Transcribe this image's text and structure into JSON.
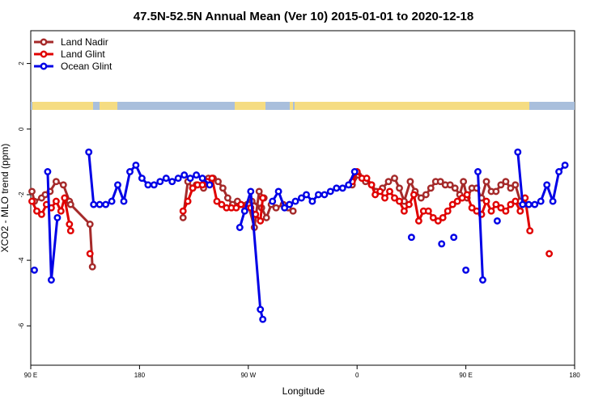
{
  "chart_data": {
    "type": "line",
    "title": "47.5N-52.5N Annual Mean (Ver 10)   2015-01-01 to 2020-12-18",
    "xlabel": "Longitude",
    "ylabel": "XCO2 - MLO trend (ppm)",
    "x_ticks": [
      {
        "value": 90,
        "label": "90 E"
      },
      {
        "value": 180,
        "label": "180"
      },
      {
        "value": 270,
        "label": "90 W"
      },
      {
        "value": 360,
        "label": "0"
      },
      {
        "value": 450,
        "label": "90 E"
      },
      {
        "value": 540,
        "label": "180"
      }
    ],
    "y_ticks": [
      {
        "value": -6,
        "label": "-6"
      },
      {
        "value": -4,
        "label": "-4"
      },
      {
        "value": -2,
        "label": "-2"
      },
      {
        "value": 0,
        "label": "0"
      },
      {
        "value": 2,
        "label": "2"
      }
    ],
    "xlim": [
      90,
      540
    ],
    "ylim": [
      -7.2,
      3.0
    ],
    "grid": false,
    "legend_position": "top-left",
    "land_strip_colors": {
      "land": "#f5dc82",
      "ocean": "#a9bfdc"
    },
    "series": [
      {
        "name": "Land Nadir",
        "color": "#a52a2a",
        "segments": [
          [
            [
              91,
              -1.9
            ],
            [
              93,
              -2.2
            ],
            [
              99,
              -2.1
            ],
            [
              102,
              -2.0
            ],
            [
              106,
              -1.9
            ],
            [
              111,
              -1.6
            ],
            [
              117,
              -1.7
            ],
            [
              122,
              -2.2
            ]
          ],
          [
            [
              123,
              -2.3
            ],
            [
              139,
              -2.9
            ],
            [
              141,
              -4.2
            ]
          ],
          [
            [
              216,
              -2.7
            ],
            [
              220,
              -1.6
            ],
            [
              224,
              -1.8
            ],
            [
              227,
              -1.7
            ],
            [
              233,
              -1.8
            ],
            [
              237,
              -1.5
            ],
            [
              241,
              -1.5
            ],
            [
              245,
              -1.6
            ],
            [
              249,
              -1.8
            ],
            [
              253,
              -2.1
            ],
            [
              257,
              -2.3
            ],
            [
              261,
              -2.2
            ],
            [
              269,
              -2.3
            ],
            [
              273,
              -2.2
            ],
            [
              281,
              -2.4
            ],
            [
              285,
              -2.7
            ],
            [
              289,
              -2.3
            ],
            [
              293,
              -2.4
            ],
            [
              299,
              -2.3
            ],
            [
              303,
              -2.4
            ],
            [
              307,
              -2.5
            ]
          ]
        ]
      },
      {
        "name": "Land Nadir",
        "color": "#a52a2a",
        "segments": [
          [
            [
              270,
              -2.3
            ],
            [
              275,
              -3.0
            ],
            [
              279,
              -1.9
            ],
            [
              283,
              -2.1
            ]
          ],
          [
            [
              356,
              -1.7
            ],
            [
              361,
              -1.4
            ],
            [
              367,
              -1.6
            ],
            [
              372,
              -1.7
            ],
            [
              376,
              -1.9
            ],
            [
              381,
              -1.8
            ],
            [
              386,
              -1.6
            ],
            [
              391,
              -1.5
            ],
            [
              395,
              -1.8
            ],
            [
              399,
              -2.2
            ],
            [
              404,
              -1.6
            ],
            [
              408,
              -1.9
            ],
            [
              413,
              -2.1
            ],
            [
              417,
              -2.0
            ],
            [
              421,
              -1.8
            ],
            [
              425,
              -1.6
            ],
            [
              429,
              -1.6
            ],
            [
              433,
              -1.7
            ],
            [
              437,
              -1.7
            ],
            [
              441,
              -1.8
            ],
            [
              445,
              -2.0
            ],
            [
              448,
              -1.6
            ],
            [
              451,
              -2.1
            ],
            [
              455,
              -1.8
            ],
            [
              459,
              -1.8
            ],
            [
              463,
              -2.1
            ],
            [
              467,
              -1.6
            ],
            [
              471,
              -1.9
            ],
            [
              475,
              -1.9
            ],
            [
              479,
              -1.7
            ],
            [
              483,
              -1.6
            ],
            [
              487,
              -1.8
            ],
            [
              491,
              -1.7
            ],
            [
              495,
              -2.2
            ]
          ]
        ]
      },
      {
        "name": "Land Glint",
        "color": "#e00000",
        "segments": [
          [
            [
              91,
              -2.2
            ],
            [
              95,
              -2.5
            ],
            [
              99,
              -2.6
            ],
            [
              103,
              -2.3
            ],
            [
              107,
              -2.4
            ],
            [
              111,
              -2.2
            ],
            [
              115,
              -2.5
            ],
            [
              118,
              -2.1
            ],
            [
              122,
              -2.9
            ],
            [
              123,
              -3.1
            ]
          ],
          [
            [
              139,
              -3.8
            ]
          ],
          [
            [
              216,
              -2.5
            ],
            [
              220,
              -2.2
            ],
            [
              224,
              -1.8
            ],
            [
              228,
              -1.7
            ],
            [
              232,
              -1.7
            ],
            [
              236,
              -1.6
            ],
            [
              240,
              -1.5
            ],
            [
              244,
              -2.2
            ],
            [
              248,
              -2.3
            ],
            [
              252,
              -2.4
            ],
            [
              256,
              -2.4
            ],
            [
              260,
              -2.4
            ],
            [
              264,
              -2.3
            ],
            [
              268,
              -2.4
            ],
            [
              272,
              -2.4
            ],
            [
              276,
              -2.6
            ],
            [
              280,
              -2.8
            ],
            [
              282,
              -2.1
            ]
          ]
        ]
      },
      {
        "name": "Land Glint",
        "color": "#e00000",
        "segments": [
          [
            [
              356,
              -1.6
            ],
            [
              360,
              -1.3
            ],
            [
              364,
              -1.5
            ],
            [
              368,
              -1.5
            ],
            [
              372,
              -1.7
            ],
            [
              375,
              -2.0
            ],
            [
              379,
              -1.9
            ],
            [
              383,
              -2.1
            ],
            [
              387,
              -1.9
            ],
            [
              391,
              -2.1
            ],
            [
              395,
              -2.2
            ],
            [
              399,
              -2.5
            ],
            [
              403,
              -2.3
            ],
            [
              407,
              -2.0
            ],
            [
              411,
              -2.8
            ],
            [
              415,
              -2.5
            ],
            [
              419,
              -2.5
            ],
            [
              423,
              -2.7
            ],
            [
              427,
              -2.8
            ],
            [
              431,
              -2.7
            ],
            [
              435,
              -2.5
            ],
            [
              439,
              -2.3
            ],
            [
              443,
              -2.2
            ],
            [
              447,
              -2.1
            ],
            [
              451,
              -2.0
            ],
            [
              455,
              -2.4
            ],
            [
              459,
              -2.5
            ],
            [
              463,
              -2.6
            ],
            [
              467,
              -2.2
            ],
            [
              471,
              -2.5
            ],
            [
              475,
              -2.3
            ],
            [
              479,
              -2.4
            ],
            [
              483,
              -2.5
            ],
            [
              487,
              -2.3
            ],
            [
              491,
              -2.2
            ],
            [
              495,
              -2.5
            ],
            [
              499,
              -2.1
            ],
            [
              503,
              -3.1
            ]
          ],
          [
            [
              519,
              -3.8
            ]
          ]
        ]
      },
      {
        "name": "Ocean Glint",
        "color": "#0000e6",
        "segments": [
          [
            [
              93,
              -4.3
            ]
          ],
          [
            [
              104,
              -1.3
            ],
            [
              107,
              -4.6
            ],
            [
              112,
              -2.7
            ]
          ],
          [
            [
              138,
              -0.7
            ],
            [
              142,
              -2.3
            ],
            [
              147,
              -2.3
            ],
            [
              152,
              -2.3
            ],
            [
              157,
              -2.2
            ],
            [
              162,
              -1.7
            ],
            [
              167,
              -2.2
            ],
            [
              172,
              -1.3
            ],
            [
              177,
              -1.1
            ],
            [
              182,
              -1.5
            ],
            [
              187,
              -1.7
            ],
            [
              192,
              -1.7
            ],
            [
              197,
              -1.6
            ],
            [
              202,
              -1.5
            ],
            [
              207,
              -1.6
            ],
            [
              212,
              -1.5
            ],
            [
              217,
              -1.4
            ],
            [
              222,
              -1.5
            ],
            [
              227,
              -1.4
            ],
            [
              232,
              -1.5
            ],
            [
              238,
              -1.7
            ]
          ],
          [
            [
              263,
              -3.0
            ],
            [
              267,
              -2.5
            ],
            [
              272,
              -1.9
            ],
            [
              280,
              -5.5
            ],
            [
              282,
              -5.8
            ]
          ],
          [
            [
              290,
              -2.2
            ],
            [
              295,
              -1.9
            ],
            [
              300,
              -2.4
            ],
            [
              304,
              -2.3
            ],
            [
              309,
              -2.2
            ],
            [
              314,
              -2.1
            ],
            [
              318,
              -2.0
            ],
            [
              323,
              -2.2
            ],
            [
              328,
              -2.0
            ],
            [
              333,
              -2.0
            ],
            [
              338,
              -1.9
            ],
            [
              343,
              -1.8
            ],
            [
              348,
              -1.8
            ],
            [
              353,
              -1.7
            ],
            [
              358,
              -1.3
            ]
          ],
          [
            [
              405,
              -3.3
            ]
          ],
          [
            [
              430,
              -3.5
            ]
          ],
          [
            [
              440,
              -3.3
            ]
          ],
          [
            [
              450,
              -4.3
            ]
          ],
          [
            [
              460,
              -1.3
            ],
            [
              464,
              -4.6
            ]
          ],
          [
            [
              476,
              -2.8
            ]
          ],
          [
            [
              493,
              -0.7
            ],
            [
              497,
              -2.3
            ],
            [
              502,
              -2.3
            ],
            [
              507,
              -2.3
            ],
            [
              512,
              -2.2
            ],
            [
              517,
              -1.7
            ],
            [
              522,
              -2.2
            ],
            [
              527,
              -1.3
            ],
            [
              532,
              -1.1
            ]
          ]
        ]
      }
    ],
    "legend": [
      {
        "label": "Land Nadir",
        "color": "#a52a2a"
      },
      {
        "label": "Land Glint",
        "color": "#e00000"
      },
      {
        "label": "Ocean Glint",
        "color": "#0000e6"
      }
    ]
  }
}
